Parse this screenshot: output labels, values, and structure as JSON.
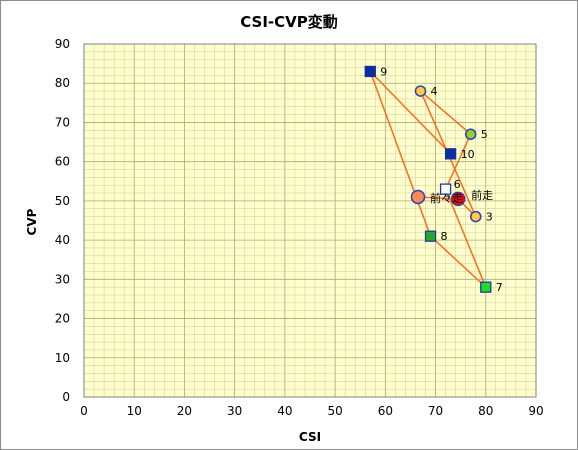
{
  "chart_data": {
    "type": "scatter",
    "title": "CSI-CVP変動",
    "xlabel": "CSI",
    "ylabel": "CVP",
    "xlim": [
      0,
      90
    ],
    "ylim": [
      0,
      90
    ],
    "xticks": [
      "0",
      "10",
      "20",
      "30",
      "40",
      "50",
      "60",
      "70",
      "80",
      "90"
    ],
    "yticks": [
      "0",
      "10",
      "20",
      "30",
      "40",
      "50",
      "60",
      "70",
      "80",
      "90"
    ],
    "grid": true,
    "line_color": "#ff6a1a",
    "plot_background": "#ffffcc",
    "grid_color": "#c9c9a0",
    "path": [
      {
        "label": "前々走",
        "x": 66.5,
        "y": 51,
        "marker": "circle",
        "fill": "#ff8a55",
        "stroke": "#2c3fb5"
      },
      {
        "label": "前走",
        "x": 74.5,
        "y": 50.5,
        "marker": "circle",
        "fill": "#ff0000",
        "stroke": "#2c3fb5"
      },
      {
        "label": "3",
        "x": 78,
        "y": 46,
        "marker": "circle",
        "fill": "#ffcc44",
        "stroke": "#2c3fb5"
      },
      {
        "label": "4",
        "x": 67,
        "y": 78,
        "marker": "circle",
        "fill": "#ffcc44",
        "stroke": "#2c3fb5"
      },
      {
        "label": "5",
        "x": 77,
        "y": 67,
        "marker": "circle",
        "fill": "#9acd32",
        "stroke": "#2c3fb5"
      },
      {
        "label": "6",
        "x": 72,
        "y": 53,
        "marker": "square",
        "fill": "#ffffff",
        "stroke": "#1a3aa8"
      },
      {
        "label": "7",
        "x": 80,
        "y": 28,
        "marker": "square",
        "fill": "#22dd22",
        "stroke": "#1a3aa8"
      },
      {
        "label": "8",
        "x": 69,
        "y": 41,
        "marker": "square",
        "fill": "#2aa82a",
        "stroke": "#1a3aa8"
      },
      {
        "label": "9",
        "x": 57,
        "y": 83,
        "marker": "square",
        "fill": "#0d2ea0",
        "stroke": "#0d2ea0"
      },
      {
        "label": "10",
        "x": 73,
        "y": 62,
        "marker": "square",
        "fill": "#0d2ea0",
        "stroke": "#0d2ea0"
      }
    ]
  }
}
